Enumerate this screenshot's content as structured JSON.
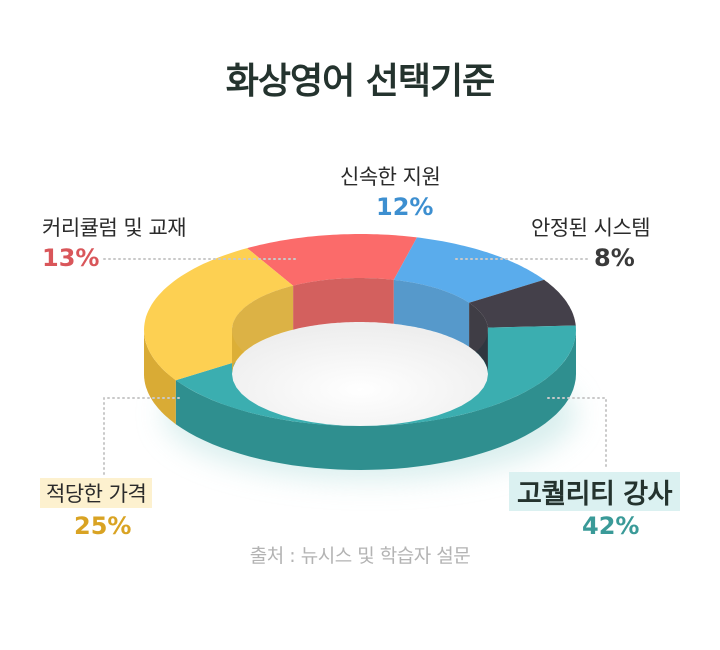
{
  "title": "화상영어 선택기준",
  "source": "출처 : 뉴시스 및 학습자 설문",
  "chart_data": {
    "type": "pie",
    "variant": "3d-donut",
    "title": "화상영어 선택기준",
    "slices": [
      {
        "label": "고퀄리티 강사",
        "value": 42,
        "display": "42%",
        "color": "#3baeb0",
        "side_color": "#2f8f8f"
      },
      {
        "label": "적당한 가격",
        "value": 25,
        "display": "25%",
        "color": "#fdd052",
        "side_color": "#d9ab35"
      },
      {
        "label": "커리큘럼 및 교재",
        "value": 13,
        "display": "13%",
        "color": "#fb6b6a",
        "side_color": "#cf5250"
      },
      {
        "label": "신속한 지원",
        "value": 12,
        "display": "12%",
        "color": "#5aacec",
        "side_color": "#4890c7"
      },
      {
        "label": "안정된 시스템",
        "value": 8,
        "display": "8%",
        "color": "#44404a",
        "side_color": "#2f2c35"
      }
    ],
    "label_colors": {
      "고퀄리티 강사": "#3a9a98",
      "적당한 가격": "#d9a323",
      "커리큘럼 및 교재": "#d9565a",
      "신속한 지원": "#3d8fd0",
      "안정된 시스템": "#3a3a3a"
    }
  }
}
